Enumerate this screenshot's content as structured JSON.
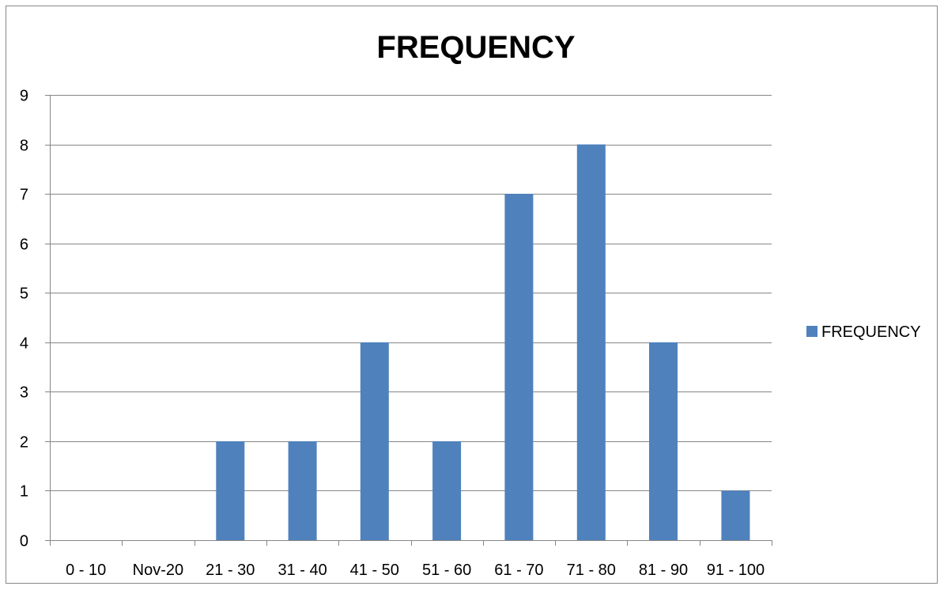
{
  "chart_data": {
    "type": "bar",
    "title": "FREQUENCY",
    "xlabel": "",
    "ylabel": "",
    "categories": [
      "0 - 10",
      "Nov-20",
      "21 - 30",
      "31 - 40",
      "41 - 50",
      "51 - 60",
      "61 - 70",
      "71 - 80",
      "81 - 90",
      "91 - 100"
    ],
    "series": [
      {
        "name": "FREQUENCY",
        "values": [
          0,
          0,
          2,
          2,
          4,
          2,
          7,
          8,
          4,
          1
        ],
        "color": "#4f81bd"
      }
    ],
    "ylim": [
      0,
      9
    ],
    "yticks": [
      0,
      1,
      2,
      3,
      4,
      5,
      6,
      7,
      8,
      9
    ],
    "grid": true,
    "legend_position": "right"
  }
}
